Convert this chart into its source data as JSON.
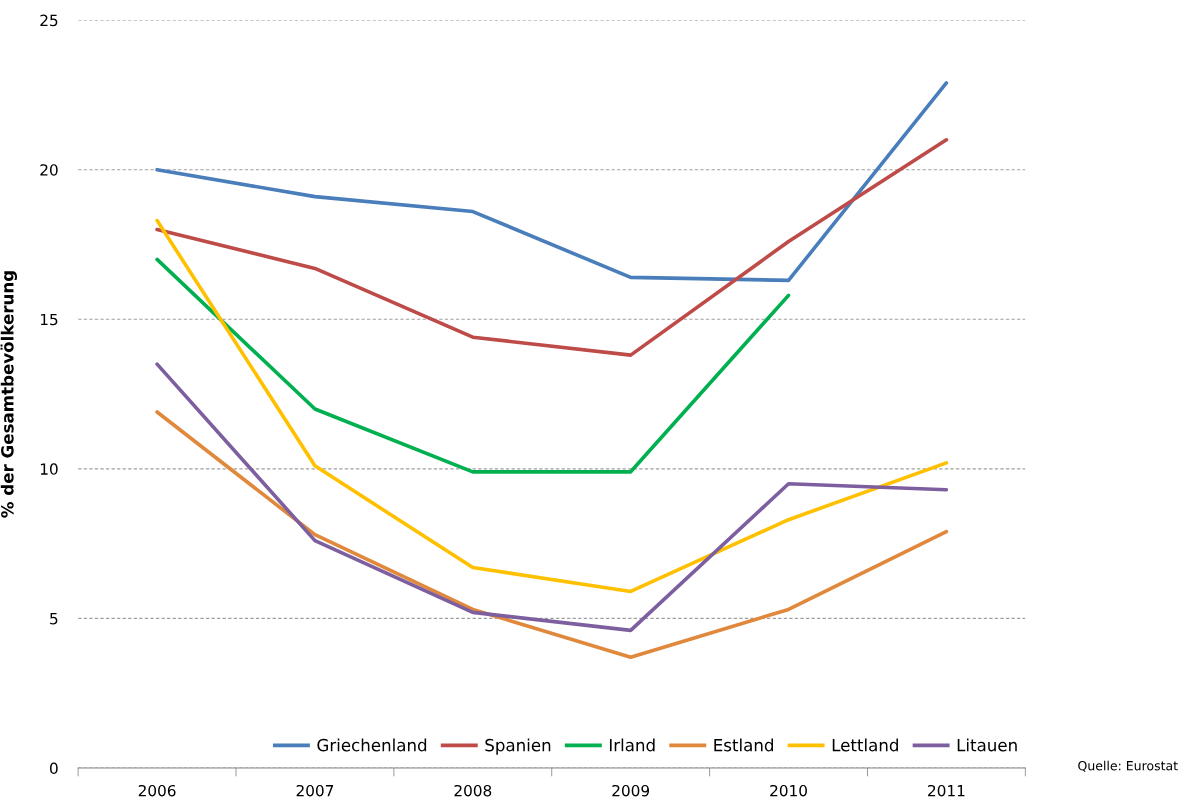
{
  "chart_data": {
    "type": "line",
    "ylabel": "% der Gesamtbevölkerung",
    "categories": [
      "2006",
      "2007",
      "2008",
      "2009",
      "2010",
      "2011"
    ],
    "series": [
      {
        "name": "Griechenland",
        "color": "#4a7ebb",
        "values": [
          20.0,
          19.1,
          18.6,
          16.4,
          16.3,
          22.9
        ]
      },
      {
        "name": "Spanien",
        "color": "#be4b48",
        "values": [
          18.0,
          16.7,
          14.4,
          13.8,
          17.6,
          21.0
        ]
      },
      {
        "name": "Irland",
        "color": "#00b050",
        "values": [
          17.0,
          12.0,
          9.9,
          9.9,
          15.8,
          null
        ]
      },
      {
        "name": "Estland",
        "color": "#e0883c",
        "values": [
          11.9,
          7.8,
          5.3,
          3.7,
          5.3,
          7.9
        ]
      },
      {
        "name": "Lettland",
        "color": "#ffc000",
        "values": [
          18.3,
          10.1,
          6.7,
          5.9,
          8.3,
          10.2
        ]
      },
      {
        "name": "Litauen",
        "color": "#7d5fa0",
        "values": [
          13.5,
          7.6,
          5.2,
          4.6,
          9.5,
          9.3
        ]
      }
    ],
    "ylim": [
      0,
      25
    ],
    "yticks": [
      0,
      5,
      10,
      15,
      20,
      25
    ],
    "grid": "y",
    "legend": "bottom",
    "annotations": [
      "Quelle: Eurostat"
    ]
  }
}
